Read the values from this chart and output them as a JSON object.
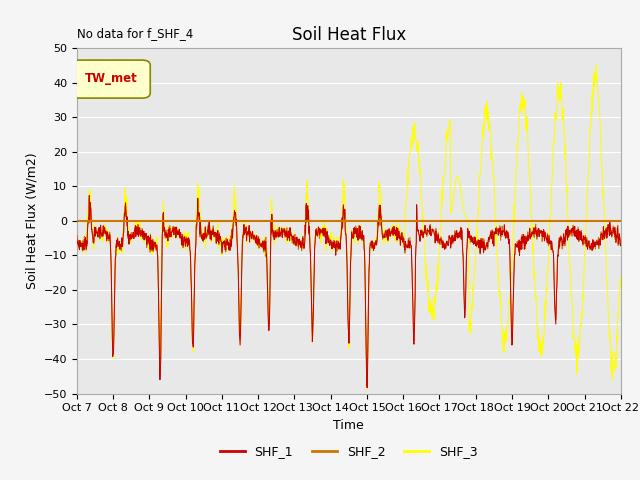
{
  "title": "Soil Heat Flux",
  "xlabel": "Time",
  "ylabel": "Soil Heat Flux (W/m2)",
  "note": "No data for f_SHF_4",
  "legend_label": "TW_met",
  "ylim": [
    -50,
    50
  ],
  "yticks": [
    -50,
    -40,
    -30,
    -20,
    -10,
    0,
    10,
    20,
    30,
    40,
    50
  ],
  "xtick_labels": [
    "Oct 7",
    "Oct 8",
    "Oct 9",
    "Oct 10",
    "Oct 11",
    "Oct 12",
    "Oct 13",
    "Oct 14",
    "Oct 15",
    "Oct 16",
    "Oct 17",
    "Oct 18",
    "Oct 19",
    "Oct 20",
    "Oct 21",
    "Oct 22"
  ],
  "shf1_color": "#cc0000",
  "shf2_color": "#cc7700",
  "shf3_color": "#ffff00",
  "zero_line_color": "#cc7700",
  "plot_bg_color": "#e8e8e8",
  "fig_bg_color": "#f5f5f5",
  "grid_color": "#ffffff",
  "title_fontsize": 12,
  "axis_label_fontsize": 9,
  "tick_fontsize": 8
}
